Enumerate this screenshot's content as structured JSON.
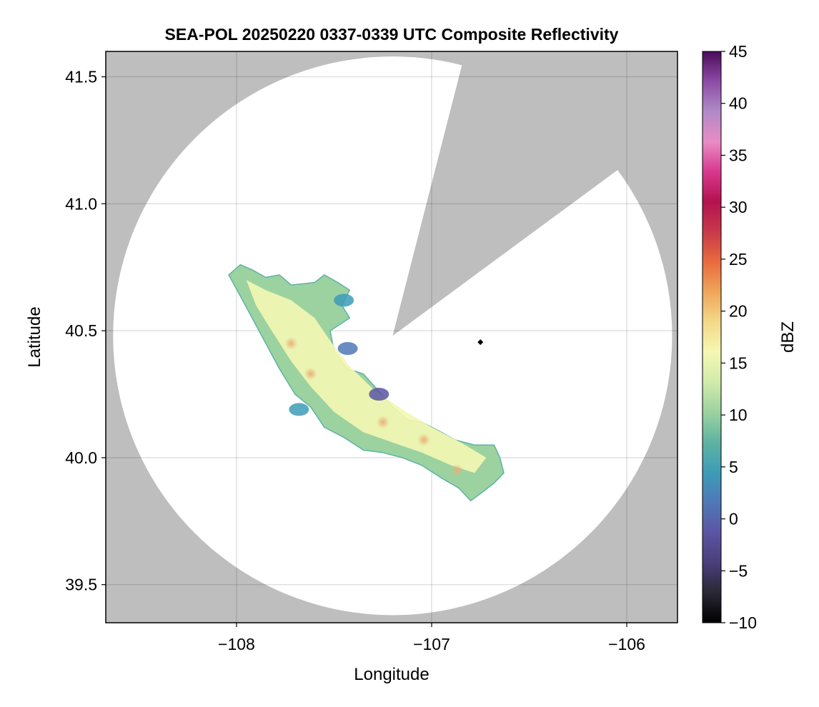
{
  "chart_data": {
    "type": "heatmap",
    "title": "SEA-POL 20250220 0337-0339 UTC Composite Reflectivity",
    "xlabel": "Longitude",
    "ylabel": "Latitude",
    "xlim": [
      -108.67,
      -105.74
    ],
    "ylim": [
      39.35,
      41.6
    ],
    "x_ticks": [
      -108,
      -107,
      -106
    ],
    "x_tick_labels": [
      "−108",
      "−107",
      "−106"
    ],
    "y_ticks": [
      39.5,
      40.0,
      40.5,
      41.0,
      41.5
    ],
    "y_tick_labels": [
      "39.5",
      "40.0",
      "40.5",
      "41.0",
      "41.5"
    ],
    "grid": true,
    "background_color": "#bebebe",
    "coverage_color": "#ffffff",
    "radar": {
      "center_lon": -107.2,
      "center_lat": 40.48,
      "range_deg_lat": 1.1,
      "blocked_sector_start_lon_lat": [
        -106.85,
        41.53
      ],
      "blocked_sector_end_lon_lat": [
        -106.07,
        41.12
      ]
    },
    "marker": {
      "lon": -106.75,
      "lat": 40.455,
      "shape": "diamond"
    },
    "echo_outline": [
      [
        -107.98,
        40.76
      ],
      [
        -107.92,
        40.74
      ],
      [
        -107.85,
        40.71
      ],
      [
        -107.78,
        40.72
      ],
      [
        -107.72,
        40.68
      ],
      [
        -107.6,
        40.69
      ],
      [
        -107.55,
        40.72
      ],
      [
        -107.48,
        40.69
      ],
      [
        -107.42,
        40.66
      ],
      [
        -107.46,
        40.6
      ],
      [
        -107.42,
        40.55
      ],
      [
        -107.52,
        40.5
      ],
      [
        -107.5,
        40.42
      ],
      [
        -107.43,
        40.35
      ],
      [
        -107.35,
        40.33
      ],
      [
        -107.28,
        40.27
      ],
      [
        -107.2,
        40.2
      ],
      [
        -107.12,
        40.15
      ],
      [
        -107.05,
        40.14
      ],
      [
        -106.95,
        40.1
      ],
      [
        -106.88,
        40.07
      ],
      [
        -106.78,
        40.05
      ],
      [
        -106.68,
        40.05
      ],
      [
        -106.65,
        40.0
      ],
      [
        -106.63,
        39.94
      ],
      [
        -106.68,
        39.9
      ],
      [
        -106.73,
        39.87
      ],
      [
        -106.8,
        39.83
      ],
      [
        -106.86,
        39.88
      ],
      [
        -106.95,
        39.92
      ],
      [
        -107.05,
        39.97
      ],
      [
        -107.15,
        40.0
      ],
      [
        -107.25,
        40.02
      ],
      [
        -107.35,
        40.03
      ],
      [
        -107.45,
        40.08
      ],
      [
        -107.55,
        40.12
      ],
      [
        -107.62,
        40.2
      ],
      [
        -107.7,
        40.25
      ],
      [
        -107.78,
        40.35
      ],
      [
        -107.85,
        40.45
      ],
      [
        -107.92,
        40.55
      ],
      [
        -107.99,
        40.65
      ],
      [
        -108.04,
        40.72
      ]
    ],
    "echo_core_outline": [
      [
        -107.95,
        40.7
      ],
      [
        -107.85,
        40.66
      ],
      [
        -107.72,
        40.62
      ],
      [
        -107.6,
        40.55
      ],
      [
        -107.52,
        40.46
      ],
      [
        -107.42,
        40.36
      ],
      [
        -107.3,
        40.27
      ],
      [
        -107.15,
        40.19
      ],
      [
        -107.0,
        40.12
      ],
      [
        -106.85,
        40.06
      ],
      [
        -106.72,
        40.0
      ],
      [
        -106.78,
        39.94
      ],
      [
        -106.9,
        39.97
      ],
      [
        -107.05,
        40.02
      ],
      [
        -107.2,
        40.06
      ],
      [
        -107.35,
        40.1
      ],
      [
        -107.5,
        40.18
      ],
      [
        -107.62,
        40.28
      ],
      [
        -107.72,
        40.38
      ],
      [
        -107.82,
        40.5
      ],
      [
        -107.9,
        40.6
      ]
    ],
    "echo_low_regions": [
      {
        "lon": -107.27,
        "lat": 40.25,
        "dbz": 0
      },
      {
        "lon": -107.43,
        "lat": 40.43,
        "dbz": 3
      },
      {
        "lon": -107.45,
        "lat": 40.62,
        "dbz": 5
      },
      {
        "lon": -107.68,
        "lat": 40.19,
        "dbz": 5
      }
    ],
    "echo_peaks": [
      {
        "lon": -107.62,
        "lat": 40.33,
        "dbz": 22
      },
      {
        "lon": -107.25,
        "lat": 40.14,
        "dbz": 21
      },
      {
        "lon": -106.87,
        "lat": 39.95,
        "dbz": 22
      },
      {
        "lon": -107.04,
        "lat": 40.07,
        "dbz": 20
      },
      {
        "lon": -107.72,
        "lat": 40.45,
        "dbz": 20
      }
    ],
    "colorbar": {
      "label": "dBZ",
      "min": -10,
      "max": 45,
      "ticks": [
        -10,
        -5,
        0,
        5,
        10,
        15,
        20,
        25,
        30,
        35,
        40,
        45
      ],
      "tick_labels": [
        "−10",
        "−5",
        "0",
        "5",
        "10",
        "15",
        "20",
        "25",
        "30",
        "35",
        "40",
        "45"
      ],
      "stops": [
        "#000000",
        "#2a2835",
        "#4a3f7a",
        "#5b55a3",
        "#4f79b8",
        "#3d9cb7",
        "#5fb3a2",
        "#9bd2a0",
        "#d1ebab",
        "#f5f7b3",
        "#f4d98a",
        "#efa65c",
        "#e86a3e",
        "#c83a4a",
        "#b2124f",
        "#d8388e",
        "#e98cc5",
        "#b08ac8",
        "#8d4ca5",
        "#4b0b5b"
      ]
    }
  }
}
